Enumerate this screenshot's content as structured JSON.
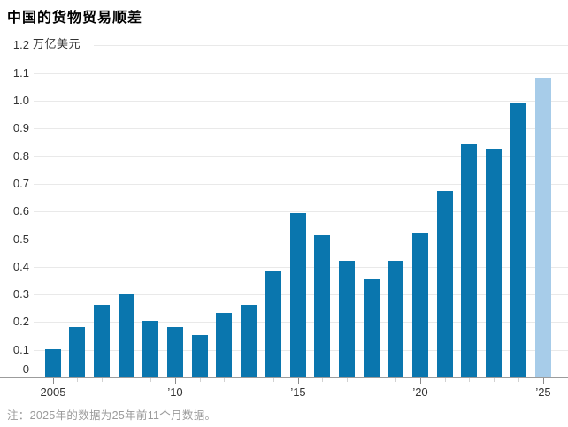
{
  "page": {
    "title": "中国的货物贸易顺差",
    "note": "注：2025年的数据为25年前11个月数据。"
  },
  "chart_data": {
    "type": "bar",
    "title": "中国的货物贸易顺差",
    "unit_label": "万亿美元",
    "note": "注：2025年的数据为25年前11个月数据。",
    "x": [
      2005,
      2006,
      2007,
      2008,
      2009,
      2010,
      2011,
      2012,
      2013,
      2014,
      2015,
      2016,
      2017,
      2018,
      2019,
      2020,
      2021,
      2022,
      2023,
      2024,
      2025
    ],
    "values": [
      0.1,
      0.18,
      0.26,
      0.3,
      0.2,
      0.18,
      0.15,
      0.23,
      0.26,
      0.38,
      0.59,
      0.51,
      0.42,
      0.35,
      0.42,
      0.52,
      0.67,
      0.84,
      0.82,
      0.99,
      1.08
    ],
    "highlight_index": 20,
    "highlight_meaning": "2025年（前11个月数据）",
    "x_tick_labels": {
      "2005": "2005",
      "2010": "’10",
      "2015": "’15",
      "2020": "’20",
      "2025": "’25"
    },
    "y_ticks": [
      1.2,
      1.1,
      1.0,
      0.9,
      0.8,
      0.7,
      0.6,
      0.5,
      0.4,
      0.3,
      0.2,
      0.1,
      0
    ],
    "y_tick_labels": [
      "1.2",
      "1.1",
      "1.0",
      "0.9",
      "0.8",
      "0.7",
      "0.6",
      "0.5",
      "0.4",
      "0.3",
      "0.2",
      "0.1",
      "0"
    ],
    "ylim": [
      0,
      1.2
    ],
    "xlabel": "",
    "ylabel": "",
    "grid": true,
    "legend": false,
    "colors": {
      "bar": "#0a76ae",
      "bar_highlight": "#a7cce9",
      "gridline": "#e9e9e9",
      "axis": "#9c9c9c",
      "major_tick": "#8a8a8a",
      "minor_tick": "#d2d2d2",
      "title_text": "#000000",
      "tick_label_text": "#333333",
      "note_text": "#9b9b9b"
    }
  }
}
